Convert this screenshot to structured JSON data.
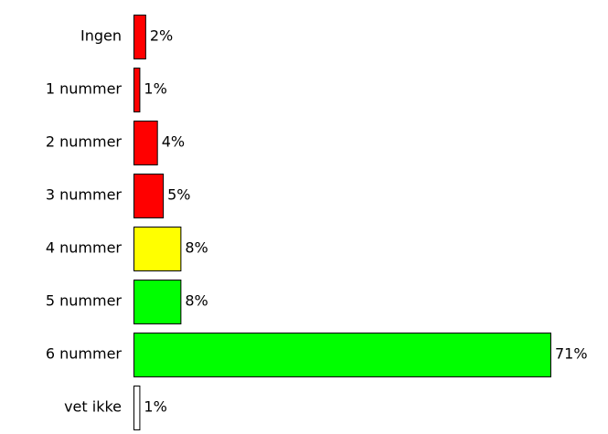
{
  "chart_data": {
    "type": "bar",
    "orientation": "horizontal",
    "categories": [
      "Ingen",
      "1 nummer",
      "2 nummer",
      "3 nummer",
      "4 nummer",
      "5 nummer",
      "6 nummer",
      "vet ikke"
    ],
    "values": [
      2,
      1,
      4,
      5,
      8,
      8,
      71,
      1
    ],
    "value_labels": [
      "2%",
      "1%",
      "4%",
      "5%",
      "8%",
      "8%",
      "71%",
      "1%"
    ],
    "colors": [
      "#ff0000",
      "#ff0000",
      "#ff0000",
      "#ff0000",
      "#ffff00",
      "#00ff00",
      "#00ff00",
      "#ffffff"
    ]
  }
}
